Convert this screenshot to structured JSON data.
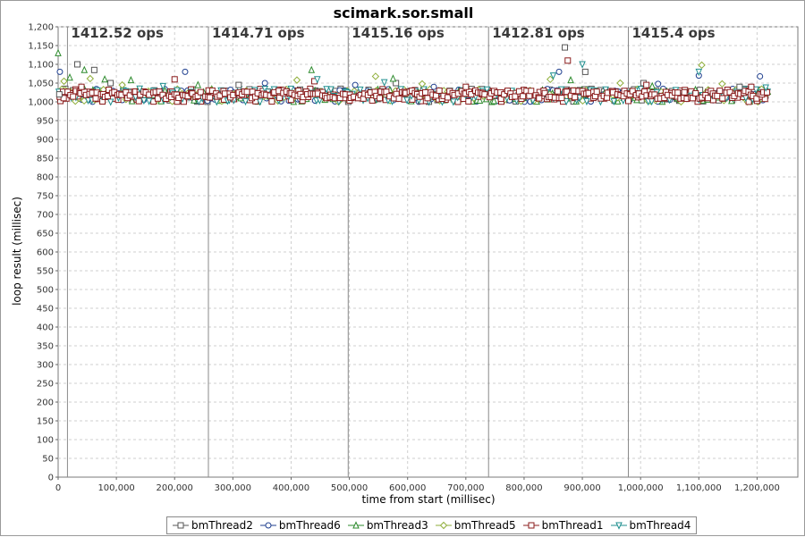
{
  "chart_data": {
    "type": "scatter",
    "title": "scimark.sor.small",
    "xlabel": "time from start (millisec)",
    "ylabel": "loop result (millisec)",
    "xlim": [
      0,
      1270000
    ],
    "ylim": [
      0,
      1200
    ],
    "x_ticks": [
      0,
      100000,
      200000,
      300000,
      400000,
      500000,
      600000,
      700000,
      800000,
      900000,
      1000000,
      1100000,
      1200000
    ],
    "x_tick_labels": [
      "0",
      "100,000",
      "200,000",
      "300,000",
      "400,000",
      "500,000",
      "600,000",
      "700,000",
      "800,000",
      "900,000",
      "1,000,000",
      "1,100,000",
      "1,200,000"
    ],
    "y_ticks": [
      0,
      50,
      100,
      150,
      200,
      250,
      300,
      350,
      400,
      450,
      500,
      550,
      600,
      650,
      700,
      750,
      800,
      850,
      900,
      950,
      1000,
      1050,
      1100,
      1150,
      1200
    ],
    "y_tick_labels": [
      "0",
      "50",
      "100",
      "150",
      "200",
      "250",
      "300",
      "350",
      "400",
      "450",
      "500",
      "550",
      "600",
      "650",
      "700",
      "750",
      "800",
      "850",
      "900",
      "950",
      "1,000",
      "1,050",
      "1,100",
      "1,150",
      "1,200"
    ],
    "grid": true,
    "legend_position": "bottom",
    "iteration_boundaries": [
      16000,
      258000,
      498000,
      739000,
      979000
    ],
    "iteration_labels": [
      {
        "x": 16000,
        "text": "1412.52 ops"
      },
      {
        "x": 258000,
        "text": "1414.71 ops"
      },
      {
        "x": 498000,
        "text": "1415.16 ops"
      },
      {
        "x": 739000,
        "text": "1412.81 ops"
      },
      {
        "x": 979000,
        "text": "1415.4 ops"
      }
    ],
    "x_range": [
      0,
      1220000
    ],
    "y_band": [
      1000,
      1035
    ],
    "series": [
      {
        "name": "bmThread2",
        "marker": "square",
        "color": "#555555",
        "outliers": [
          [
            2000,
            1020
          ],
          [
            33000,
            1100
          ],
          [
            62000,
            1085
          ],
          [
            90000,
            1050
          ],
          [
            310000,
            1045
          ],
          [
            580000,
            1050
          ],
          [
            870000,
            1145
          ],
          [
            905000,
            1080
          ],
          [
            1005000,
            1050
          ],
          [
            1170000,
            1040
          ]
        ]
      },
      {
        "name": "bmThread6",
        "marker": "circle",
        "color": "#1f3f8f",
        "outliers": [
          [
            3000,
            1080
          ],
          [
            218000,
            1080
          ],
          [
            355000,
            1050
          ],
          [
            510000,
            1045
          ],
          [
            645000,
            1040
          ],
          [
            860000,
            1080
          ],
          [
            1030000,
            1048
          ],
          [
            1100000,
            1070
          ],
          [
            1205000,
            1068
          ]
        ]
      },
      {
        "name": "bmThread3",
        "marker": "triangle-up",
        "color": "#2e8b2e",
        "outliers": [
          [
            0,
            1130
          ],
          [
            20000,
            1065
          ],
          [
            45000,
            1085
          ],
          [
            80000,
            1060
          ],
          [
            125000,
            1058
          ],
          [
            240000,
            1045
          ],
          [
            435000,
            1085
          ],
          [
            575000,
            1062
          ],
          [
            880000,
            1058
          ],
          [
            1020000,
            1042
          ]
        ]
      },
      {
        "name": "bmThread5",
        "marker": "diamond",
        "color": "#8fae3a",
        "outliers": [
          [
            10000,
            1055
          ],
          [
            55000,
            1062
          ],
          [
            110000,
            1045
          ],
          [
            410000,
            1058
          ],
          [
            545000,
            1068
          ],
          [
            625000,
            1048
          ],
          [
            845000,
            1060
          ],
          [
            965000,
            1050
          ],
          [
            1105000,
            1098
          ],
          [
            1140000,
            1048
          ]
        ]
      },
      {
        "name": "bmThread1",
        "marker": "square",
        "color": "#8b1c1c",
        "outliers": [
          [
            40000,
            1040
          ],
          [
            200000,
            1060
          ],
          [
            440000,
            1055
          ],
          [
            700000,
            1040
          ],
          [
            875000,
            1110
          ],
          [
            1010000,
            1045
          ],
          [
            1190000,
            1040
          ]
        ]
      },
      {
        "name": "bmThread4",
        "marker": "triangle-down",
        "color": "#1f8f8f",
        "outliers": [
          [
            140000,
            1035
          ],
          [
            180000,
            1042
          ],
          [
            445000,
            1060
          ],
          [
            560000,
            1052
          ],
          [
            850000,
            1070
          ],
          [
            900000,
            1100
          ],
          [
            1100000,
            1080
          ],
          [
            1215000,
            1038
          ]
        ]
      }
    ]
  }
}
